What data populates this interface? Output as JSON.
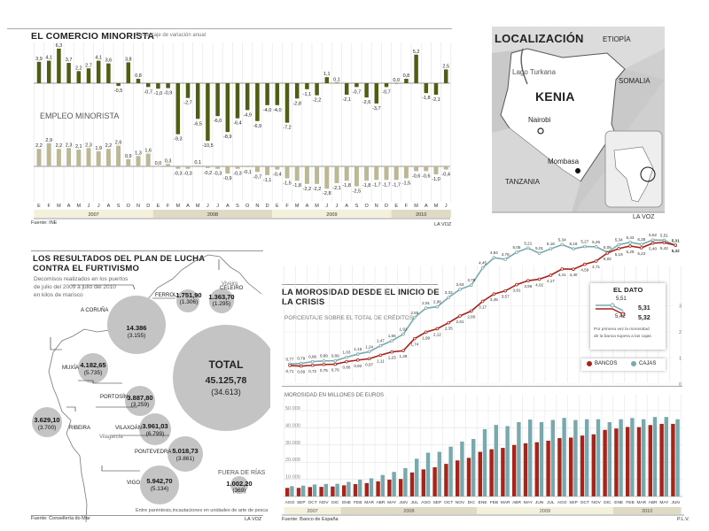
{
  "chart_data": [
    {
      "type": "bar",
      "title": "EL COMERCIO MINORISTA",
      "subtitle": "Porcentaje de variación anual",
      "secondary_title": "EMPLEO MINORISTA",
      "source": "Fuente: INE",
      "credit": "LA VOZ",
      "categories": [
        "E",
        "F",
        "M",
        "A",
        "M",
        "J",
        "J",
        "A",
        "S",
        "O",
        "N",
        "D",
        "E",
        "F",
        "M",
        "A",
        "M",
        "J",
        "J",
        "A",
        "S",
        "O",
        "N",
        "D",
        "E",
        "F",
        "M",
        "A",
        "M",
        "J",
        "J",
        "A",
        "S",
        "O",
        "N",
        "D",
        "E",
        "F",
        "M",
        "A",
        "M",
        "J"
      ],
      "years": [
        {
          "label": "2007",
          "months": 12
        },
        {
          "label": "2008",
          "months": 12
        },
        {
          "label": "2009",
          "months": 12
        },
        {
          "label": "2010",
          "months": 6
        }
      ],
      "series": [
        {
          "name": "Comercio minorista",
          "color": "#4e5e12",
          "values": [
            3.9,
            4.1,
            6.3,
            3.7,
            2.2,
            2.7,
            4.1,
            3.6,
            -0.5,
            3.8,
            0.8,
            -0.7,
            -1.0,
            -0.9,
            -9.3,
            -2.7,
            -6.5,
            -10.5,
            -6.0,
            -8.9,
            -6.4,
            -4.9,
            -6.9,
            -4.0,
            -4.0,
            -7.2,
            -2.8,
            -1.1,
            -2.2,
            1.1,
            0.1,
            -2.1,
            -0.7,
            -2.6,
            -3.7,
            -0.7,
            0.0,
            0.8,
            5.2,
            -1.8,
            -2.1,
            2.5
          ]
        },
        {
          "name": "Empleo minorista",
          "color": "#bcb795",
          "values": [
            2.2,
            2.9,
            2.2,
            2.3,
            2.1,
            2.3,
            1.9,
            2.2,
            2.6,
            0.9,
            1.3,
            1.6,
            0.0,
            0.3,
            -0.3,
            -0.3,
            0.1,
            -0.2,
            -0.3,
            -0.9,
            -0.3,
            -0.1,
            -0.7,
            -1.1,
            -0.4,
            -1.5,
            -1.8,
            -2.2,
            -2.2,
            -2.8,
            -2.1,
            -1.8,
            -2.5,
            -1.8,
            -1.7,
            -1.7,
            -1.7,
            -1.5,
            -0.6,
            -0.6,
            -1.0,
            -0.4
          ]
        }
      ]
    },
    {
      "type": "line",
      "title": "LA MOROSIDAD DESDE EL INICIO DE LA CRISIS",
      "subtitle": "PORCENTAJE SOBRE EL TOTAL DE CRÉDITOS",
      "yticks": [
        "0",
        "1",
        "2",
        "3"
      ],
      "legend": [
        "BANCOS",
        "CAJAS"
      ],
      "legend_position": "bottom-right",
      "series": [
        {
          "name": "BANCOS",
          "color": "#a8231a",
          "values": [
            0.71,
            0.69,
            0.72,
            0.75,
            0.76,
            0.86,
            0.92,
            0.97,
            1.11,
            1.23,
            1.28,
            1.74,
            1.99,
            2.12,
            2.35,
            2.61,
            2.8,
            3.17,
            3.45,
            3.57,
            3.81,
            3.96,
            4.02,
            4.17,
            4.41,
            4.4,
            4.59,
            4.71,
            5.02,
            5.19,
            5.29,
            5.22,
            5.4,
            5.42,
            5.32
          ]
        },
        {
          "name": "CAJAS",
          "color": "#78a9ae",
          "values": [
            0.77,
            0.79,
            0.86,
            0.89,
            0.89,
            1.03,
            1.15,
            1.24,
            1.47,
            1.66,
            1.91,
            2.55,
            2.91,
            2.96,
            3.32,
            3.63,
            3.79,
            4.45,
            4.84,
            4.78,
            5.05,
            5.21,
            5.01,
            5.18,
            5.34,
            5.18,
            5.27,
            5.26,
            5.05,
            5.34,
            5.43,
            5.35,
            5.52,
            5.51,
            5.31
          ]
        }
      ],
      "callout": {
        "title": "EL DATO",
        "cajas": "5,51",
        "bancos": "5,42",
        "cajas_last": "5,31",
        "bancos_last": "5,32",
        "note1": "Por primera vez la morosidad",
        "note2": "de la banca supera a las cajas"
      }
    },
    {
      "type": "bar",
      "title": "MOROSIDAD EN MILLONES DE EUROS",
      "ylim": [
        0,
        50000
      ],
      "yticks": [
        "10.000",
        "20.000",
        "30.000",
        "40.000",
        "50.000"
      ],
      "categories": [
        "AGO",
        "SEP",
        "OCT",
        "NOV",
        "DIC",
        "ENE",
        "FEB",
        "MAR",
        "ABR",
        "MAY",
        "JUN",
        "JUL",
        "AGO",
        "SEP",
        "OCT",
        "NOV",
        "DIC",
        "ENE",
        "FEB",
        "MAR",
        "ABR",
        "MAY",
        "JUN",
        "JUL",
        "AGO",
        "SEP",
        "OCT",
        "NOV",
        "DIC",
        "ENE",
        "FEB",
        "MAR",
        "ABR",
        "MAY",
        "JUN"
      ],
      "years": [
        {
          "label": "2007",
          "months": 5
        },
        {
          "label": "2008",
          "months": 12
        },
        {
          "label": "2009",
          "months": 12
        },
        {
          "label": "2010",
          "months": 6
        }
      ],
      "source": "Fuente: Banco de España",
      "credit": "P.L.V.",
      "series": [
        {
          "name": "Bancos",
          "color": "#a8231a",
          "values": [
            5000,
            5000,
            5500,
            5600,
            5800,
            6500,
            7200,
            7800,
            8800,
            9800,
            10200,
            14000,
            15800,
            17000,
            19000,
            21000,
            22500,
            26000,
            27500,
            28300,
            30000,
            31000,
            31600,
            32500,
            34000,
            34300,
            35500,
            36200,
            38800,
            39600,
            40500,
            40400,
            41600,
            42300,
            42300
          ]
        },
        {
          "name": "Cajas",
          "color": "#78a9ae",
          "values": [
            6000,
            6300,
            7000,
            7300,
            7400,
            8500,
            9800,
            10600,
            12500,
            14300,
            16500,
            22000,
            25500,
            26000,
            29000,
            32000,
            33500,
            39200,
            41700,
            41000,
            43300,
            44800,
            43300,
            44600,
            45800,
            44500,
            45000,
            45000,
            43300,
            45000,
            45700,
            45000,
            46300,
            46300,
            45000
          ]
        }
      ]
    }
  ],
  "map": {
    "title": "LOCALIZACIÓN",
    "country": "KENIA",
    "capital": "Nairobi",
    "city": "Mombasa",
    "lake": "Lago Turkana",
    "neighbors": [
      "ETIOPÍA",
      "SOMALIA",
      "TANZANIA"
    ],
    "credit": "LA VOZ"
  },
  "furtivismo": {
    "title1": "LOS RESULTADOS DEL PLAN DE LUCHA",
    "title2": "CONTRA EL FURTIVISMO",
    "desc1": "Decomisos realizados en los puertos",
    "desc2": "de julio del 2009 a julio del 2010",
    "desc3": "en kilos de marisco",
    "ports": [
      {
        "name": "FERROL",
        "kg": "1.751,90",
        "units": "(1.306)"
      },
      {
        "name": "CELEIRO",
        "kg": "1.363,70",
        "units": "(1.295)"
      },
      {
        "name": "A CORUÑA",
        "kg": "14.386",
        "units": "(3.155)"
      },
      {
        "name": "MUXÍA",
        "kg": "4.182,65",
        "units": "(5.735)"
      },
      {
        "name": "PORTOSÍN",
        "kg": "3.887,80",
        "units": "(3.259)"
      },
      {
        "name": "RIBEIRA",
        "kg": "3.629,10",
        "units": "(3.700)"
      },
      {
        "name": "VILAXOÁN",
        "kg": "3.961,03",
        "units": "(6.799)"
      },
      {
        "name": "PONTEVEDRA",
        "kg": "5.018,73",
        "units": "(3.861)"
      },
      {
        "name": "VIGO",
        "kg": "5.942,70",
        "units": "(5.134)"
      }
    ],
    "viveiro": "Viveiro",
    "vilagarcia": "Vilagarcía",
    "total": {
      "label": "TOTAL",
      "kg": "45.125,78",
      "units": "(34.613)"
    },
    "fuera": {
      "label": "FUERA DE RÍAS",
      "kg": "1.002,20",
      "units": "(369)"
    },
    "note": "Entre paréntesis,incautaciones en unidades de arte de pesca",
    "source": "Fuente: Consellería do Mar",
    "credit": "LA VOZ"
  }
}
